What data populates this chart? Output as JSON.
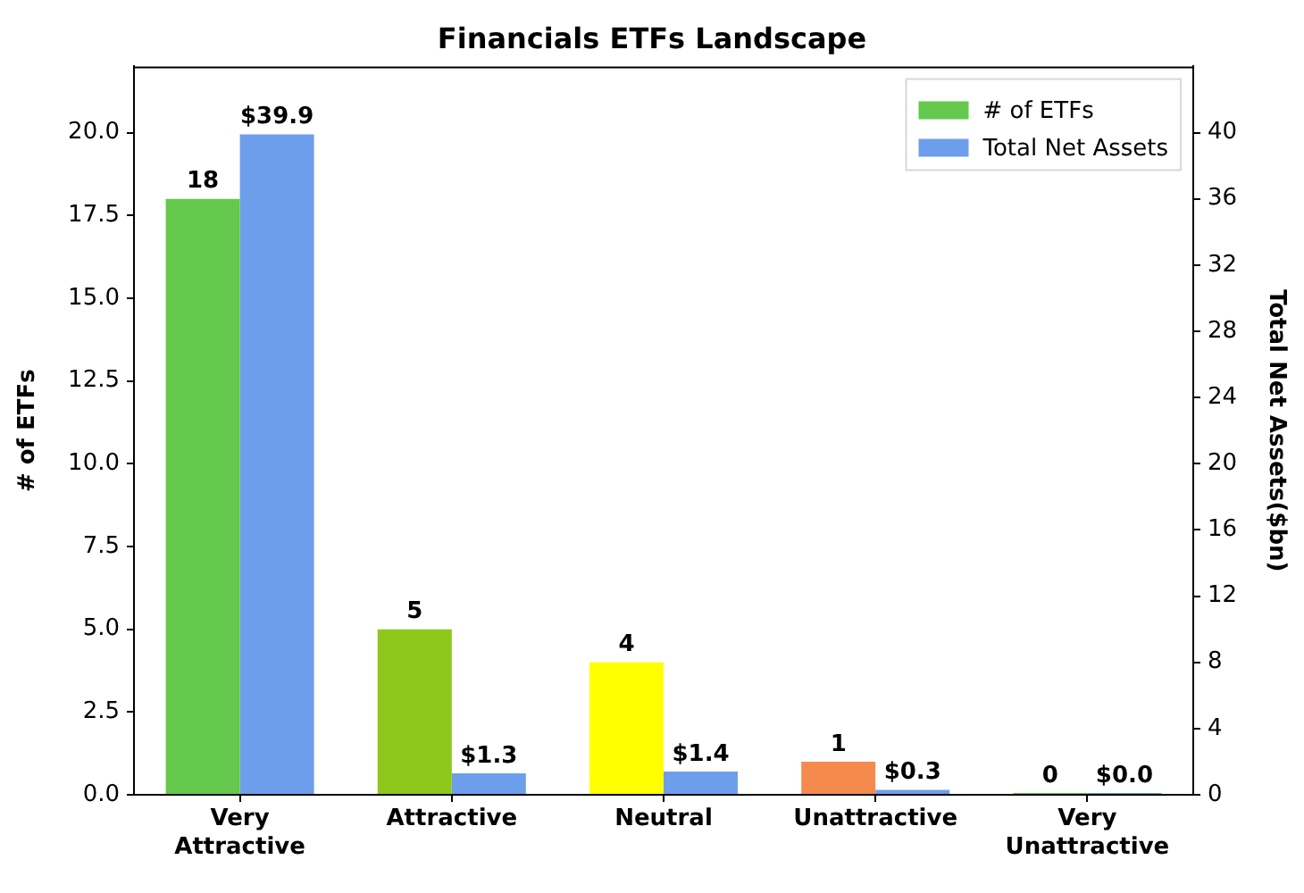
{
  "chart_data": {
    "type": "bar",
    "title": "Financials ETFs Landscape",
    "ylabel": "# of ETFs",
    "y2label": "Total Net Assets($bn)",
    "categories": [
      "Very Attractive",
      "Attractive",
      "Neutral",
      "Unattractive",
      "Very Unattractive"
    ],
    "series": [
      {
        "name": "# of ETFs",
        "color": "#64c94c",
        "colors": [
          "#64c94c",
          "#8dc81a",
          "#ffff00",
          "#f58a4f",
          null
        ],
        "values": [
          18,
          5,
          4,
          1,
          0
        ],
        "value_labels": [
          "18",
          "5",
          "4",
          "1",
          "0"
        ]
      },
      {
        "name": "Total Net Assets",
        "color": "#6d9eeb",
        "axis": "y2",
        "values": [
          39.9,
          1.3,
          1.4,
          0.3,
          0.0
        ],
        "value_labels": [
          "$39.9",
          "$1.3",
          "$1.4",
          "$0.3",
          "$0.0"
        ]
      }
    ],
    "ylim": [
      0,
      22
    ],
    "yticks": [
      {
        "value": 0,
        "label": "0.0"
      },
      {
        "value": 2.5,
        "label": "2.5"
      },
      {
        "value": 5,
        "label": "5.0"
      },
      {
        "value": 7.5,
        "label": "7.5"
      },
      {
        "value": 10,
        "label": "10.0"
      },
      {
        "value": 12.5,
        "label": "12.5"
      },
      {
        "value": 15,
        "label": "15.0"
      },
      {
        "value": 17.5,
        "label": "17.5"
      },
      {
        "value": 20,
        "label": "20.0"
      }
    ],
    "y2lim": [
      0,
      44
    ],
    "y2ticks": [
      0,
      4,
      8,
      12,
      16,
      20,
      24,
      28,
      32,
      36,
      40
    ],
    "grid": false,
    "legend": "top right"
  }
}
